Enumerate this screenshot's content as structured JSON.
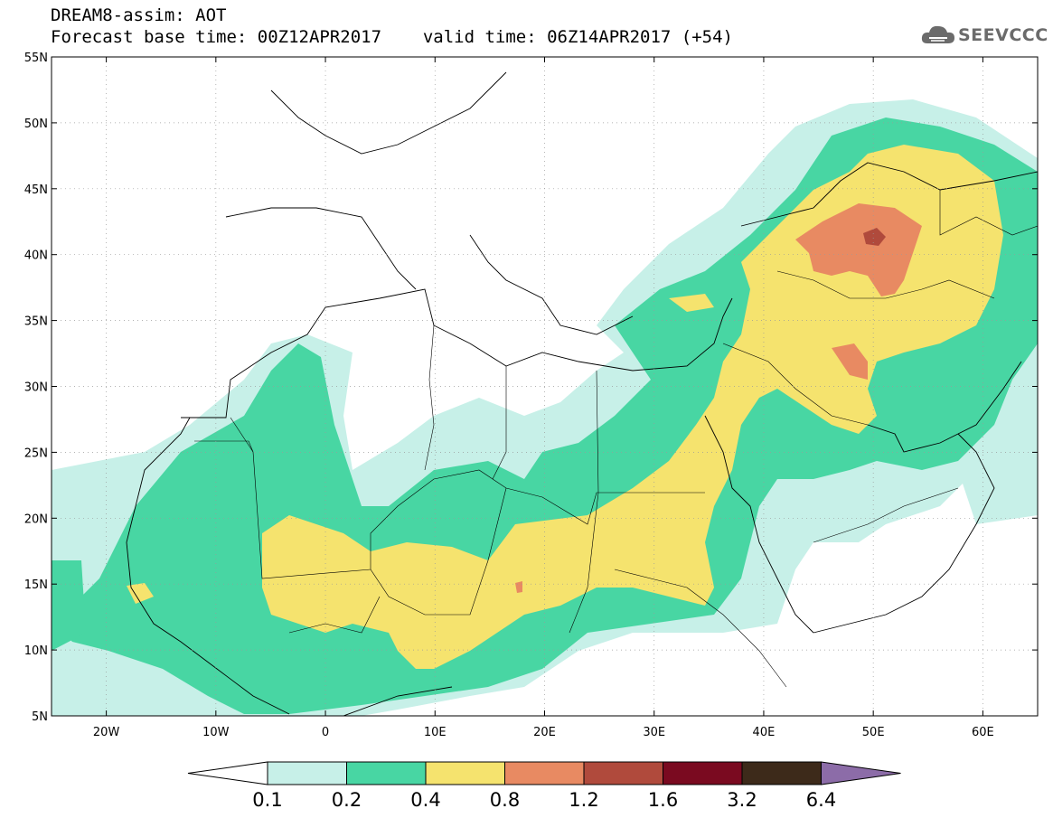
{
  "header": {
    "title": "DREAM8-assim: AOT",
    "base_time_label": "Forecast base time: 00Z12APR2017",
    "valid_time_label": "valid time: 06Z14APR2017 (+54)",
    "logo_text": "SEEVCCC"
  },
  "map": {
    "lat_labels": [
      "55N",
      "50N",
      "45N",
      "40N",
      "35N",
      "30N",
      "25N",
      "20N",
      "15N",
      "10N",
      "5N"
    ],
    "lon_labels": [
      "20W",
      "10W",
      "0",
      "10E",
      "20E",
      "30E",
      "40E",
      "50E",
      "60E"
    ],
    "lat_range": [
      5,
      55
    ],
    "lon_range": [
      -25,
      65
    ],
    "grid": true,
    "grid_style": "dotted"
  },
  "colorbar": {
    "labels": [
      "0.1",
      "0.2",
      "0.4",
      "0.8",
      "1.2",
      "1.6",
      "3.2",
      "6.4"
    ],
    "colors": [
      "#c7f0e8",
      "#48d6a3",
      "#f5e36e",
      "#e88a62",
      "#b04a3c",
      "#7a0a20",
      "#3d2a1a",
      "#8c6ca8"
    ],
    "below_color": "#ffffff",
    "above_color": "#8c6ca8"
  },
  "colors": {
    "aot_0_1": "#c7f0e8",
    "aot_0_2": "#48d6a3",
    "aot_0_4": "#f5e36e",
    "aot_0_8": "#e88a62",
    "aot_1_2": "#b04a3c",
    "aot_1_6": "#7a0a20"
  }
}
